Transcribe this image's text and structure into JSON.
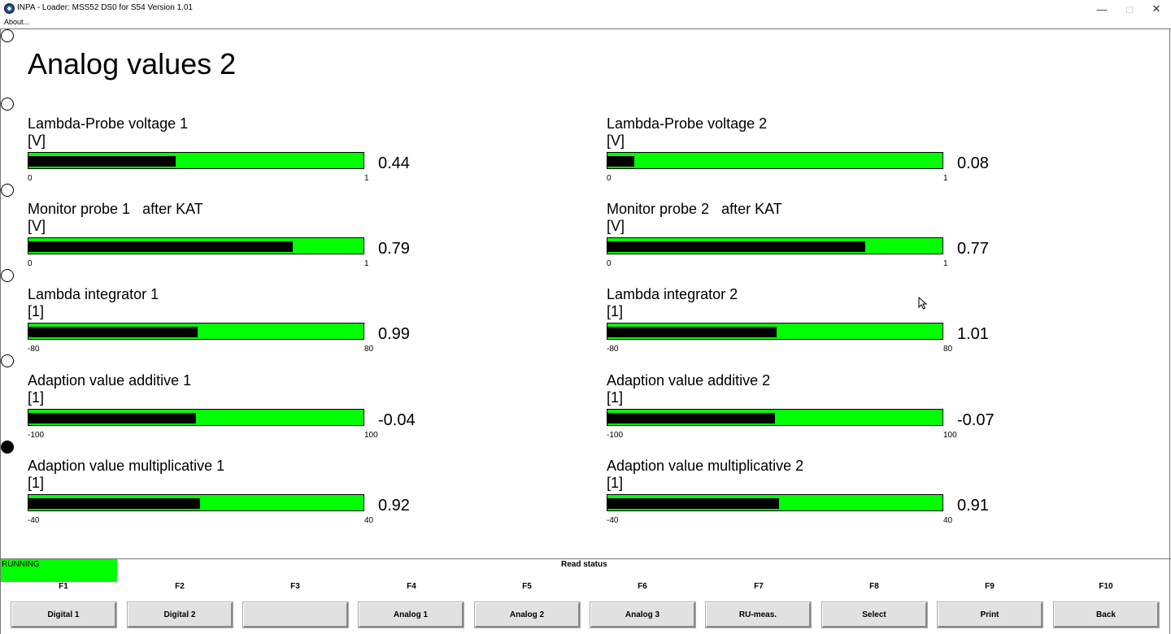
{
  "window": {
    "title": "INPA - Loader:  MSS52 DS0 for S54 Version 1.01",
    "minimize": "—",
    "maximize": "□",
    "close": "✕"
  },
  "menu": {
    "about": "About..."
  },
  "page_title": "Analog values 2",
  "gauges": [
    {
      "label": "Lambda-Probe voltage 1",
      "unit": "[V]",
      "value": "0.44",
      "min": "0",
      "max": "1",
      "fill": 0.44
    },
    {
      "label": "Lambda-Probe voltage 2",
      "unit": "[V]",
      "value": "0.08",
      "min": "0",
      "max": "1",
      "fill": 0.08
    },
    {
      "label": "Monitor probe 1   after KAT",
      "unit": "[V]",
      "value": "0.79",
      "min": "0",
      "max": "1",
      "fill": 0.79
    },
    {
      "label": "Monitor probe 2   after KAT",
      "unit": "[V]",
      "value": "0.77",
      "min": "0",
      "max": "1",
      "fill": 0.77
    },
    {
      "label": "Lambda integrator 1",
      "unit": "[1]",
      "value": "0.99",
      "min": "-80",
      "max": "80",
      "fill": 0.506
    },
    {
      "label": "Lambda integrator 2",
      "unit": "[1]",
      "value": "1.01",
      "min": "-80",
      "max": "80",
      "fill": 0.506
    },
    {
      "label": "Adaption value additive 1",
      "unit": "[1]",
      "value": "-0.04",
      "min": "-100",
      "max": "100",
      "fill": 0.4998
    },
    {
      "label": "Adaption value additive 2",
      "unit": "[1]",
      "value": "-0.07",
      "min": "-100",
      "max": "100",
      "fill": 0.4997
    },
    {
      "label": "Adaption value multiplicative 1",
      "unit": "[1]",
      "value": "0.92",
      "min": "-40",
      "max": "40",
      "fill": 0.5115
    },
    {
      "label": "Adaption value multiplicative 2",
      "unit": "[1]",
      "value": "0.91",
      "min": "-40",
      "max": "40",
      "fill": 0.5114
    }
  ],
  "radios": [
    {
      "checked": false
    },
    {
      "checked": false
    },
    {
      "checked": false
    },
    {
      "checked": false
    },
    {
      "checked": false
    },
    {
      "checked": true
    }
  ],
  "status": {
    "running": "RUNNING",
    "read_status": "Read status",
    "running_color": "#00ff00"
  },
  "fkeys": [
    {
      "key": "F1",
      "label": "Digital 1"
    },
    {
      "key": "F2",
      "label": "Digital 2"
    },
    {
      "key": "F3",
      "label": ""
    },
    {
      "key": "F4",
      "label": "Analog 1"
    },
    {
      "key": "F5",
      "label": "Analog 2"
    },
    {
      "key": "F6",
      "label": "Analog 3"
    },
    {
      "key": "F7",
      "label": "RU-meas."
    },
    {
      "key": "F8",
      "label": "Select"
    },
    {
      "key": "F9",
      "label": "Print"
    },
    {
      "key": "F10",
      "label": "Back"
    }
  ],
  "colors": {
    "bar_background": "#00ff00",
    "bar_fill": "#000000"
  }
}
